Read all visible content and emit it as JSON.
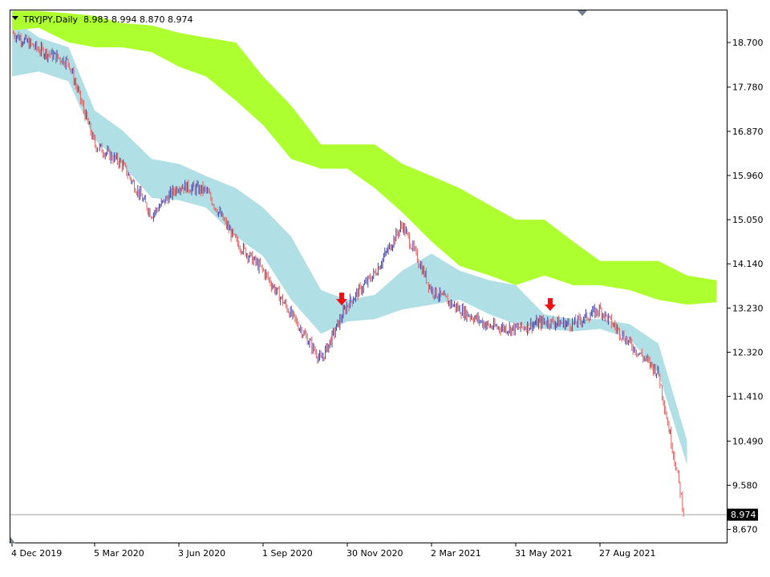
{
  "header": {
    "symbol_label": "TRYJPY,Daily",
    "ohlc_label": "8.983 8.994 8.870 8.974",
    "menu_icon": "triangle-down-icon"
  },
  "colors": {
    "bull": "#3f3fa8",
    "bear": "#e06060",
    "cloud_green": "#adff2f",
    "cloud_blue": "#b0dfe5",
    "arrow": "#ee1111",
    "grid_line": "#000000",
    "price_line": "#a0a0a0"
  },
  "chart_data": {
    "type": "candlestick",
    "symbol": "TRYJPY",
    "timeframe": "Daily",
    "x_tick_labels": [
      "4 Dec 2019",
      "5 Mar 2020",
      "3 Jun 2020",
      "1 Sep 2020",
      "30 Nov 2020",
      "2 Mar 2021",
      "31 May 2021",
      "27 Aug 2021"
    ],
    "y_tick_labels": [
      "18.700",
      "17.780",
      "16.870",
      "15.960",
      "15.050",
      "14.140",
      "13.230",
      "12.320",
      "11.410",
      "10.490",
      "9.580",
      "8.670"
    ],
    "ylim": [
      8.4,
      19.36
    ],
    "current_price": "8.974",
    "close_series": {
      "name": "",
      "x": [
        "4 Dec 2019",
        "3 Jan 2020",
        "5 Feb 2020",
        "5 Mar 2020",
        "3 Apr 2020",
        "5 May 2020",
        "3 Jun 2020",
        "2 Jul 2020",
        "3 Aug 2020",
        "1 Sep 2020",
        "1 Oct 2020",
        "2 Nov 2020",
        "30 Nov 2020",
        "30 Dec 2020",
        "29 Jan 2021",
        "2 Mar 2021",
        "1 Apr 2021",
        "3 May 2021",
        "31 May 2021",
        "30 Jun 2021",
        "30 Jul 2021",
        "27 Aug 2021",
        "27 Sep 2021",
        "27 Oct 2021",
        "16 Nov 2021",
        "23 Nov 2021"
      ],
      "y": [
        18.9,
        18.55,
        18.3,
        16.6,
        16.2,
        15.15,
        15.75,
        15.65,
        14.6,
        14.0,
        13.1,
        12.15,
        13.3,
        13.95,
        14.95,
        13.6,
        13.2,
        12.85,
        12.8,
        12.95,
        12.9,
        13.2,
        12.5,
        11.9,
        9.8,
        8.974
      ]
    },
    "cloud_green": {
      "x": [
        "4 Dec 2019",
        "3 Jan 2020",
        "5 Feb 2020",
        "5 Mar 2020",
        "3 Apr 2020",
        "5 May 2020",
        "3 Jun 2020",
        "2 Jul 2020",
        "3 Aug 2020",
        "1 Sep 2020",
        "1 Oct 2020",
        "2 Nov 2020",
        "30 Nov 2020",
        "30 Dec 2020",
        "29 Jan 2021",
        "2 Mar 2021",
        "1 Apr 2021",
        "3 May 2021",
        "31 May 2021",
        "30 Jun 2021",
        "30 Jul 2021",
        "27 Aug 2021",
        "27 Sep 2021",
        "27 Oct 2021",
        "26 Nov 2021",
        "27 Dec 2021"
      ],
      "upper": [
        19.35,
        19.35,
        19.3,
        19.25,
        19.1,
        19.05,
        18.9,
        18.8,
        18.7,
        18.0,
        17.4,
        16.6,
        16.6,
        16.6,
        16.2,
        15.95,
        15.7,
        15.35,
        15.05,
        15.05,
        14.6,
        14.2,
        14.2,
        14.2,
        13.9,
        13.8
      ],
      "lower": [
        18.95,
        19.0,
        18.7,
        18.6,
        18.6,
        18.5,
        18.2,
        18.0,
        17.5,
        17.0,
        16.3,
        16.1,
        16.1,
        15.7,
        15.2,
        14.6,
        14.1,
        13.9,
        13.7,
        13.9,
        13.7,
        13.7,
        13.6,
        13.4,
        13.3,
        13.35
      ]
    },
    "cloud_blue": {
      "x": [
        "4 Dec 2019",
        "3 Jan 2020",
        "5 Feb 2020",
        "5 Mar 2020",
        "3 Apr 2020",
        "5 May 2020",
        "3 Jun 2020",
        "2 Jul 2020",
        "3 Aug 2020",
        "1 Sep 2020",
        "1 Oct 2020",
        "2 Nov 2020",
        "30 Nov 2020",
        "30 Dec 2020",
        "29 Jan 2021",
        "2 Mar 2021",
        "1 Apr 2021",
        "3 May 2021",
        "31 May 2021",
        "30 Jun 2021",
        "30 Jul 2021",
        "27 Aug 2021",
        "27 Sep 2021",
        "27 Oct 2021",
        "26 Nov 2021"
      ],
      "upper": [
        19.2,
        18.8,
        18.6,
        17.3,
        16.9,
        16.3,
        16.2,
        15.95,
        15.7,
        15.3,
        14.7,
        13.6,
        13.4,
        13.5,
        14.0,
        14.35,
        14.0,
        13.8,
        13.7,
        13.1,
        13.0,
        13.0,
        12.9,
        12.5,
        10.5
      ],
      "lower": [
        18.0,
        18.1,
        17.9,
        16.7,
        16.2,
        15.5,
        15.45,
        15.3,
        14.7,
        14.3,
        13.4,
        12.7,
        12.95,
        13.0,
        13.2,
        13.3,
        13.4,
        13.1,
        12.9,
        12.8,
        12.75,
        12.8,
        12.6,
        11.9,
        10.0
      ]
    },
    "signal_arrows": [
      {
        "x": "24 Nov 2020",
        "direction": "down"
      },
      {
        "x": "6 Jul 2021",
        "direction": "down"
      }
    ]
  }
}
